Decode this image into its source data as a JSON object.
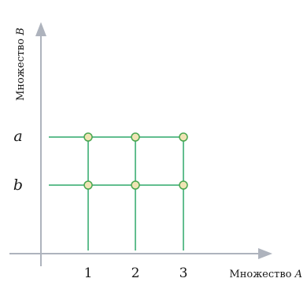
{
  "diagram": {
    "x_axis": {
      "label_prefix": "Множество ",
      "label_var": "A",
      "ticks": [
        "1",
        "2",
        "3"
      ]
    },
    "y_axis": {
      "label_prefix": "Множество ",
      "label_var": "B",
      "ticks": [
        "a",
        "b"
      ]
    },
    "colors": {
      "axis": "#aeb3bd",
      "grid_line": "#2fa86a",
      "node_fill": "#f0e4b4",
      "node_stroke": "#4aa64f"
    }
  }
}
